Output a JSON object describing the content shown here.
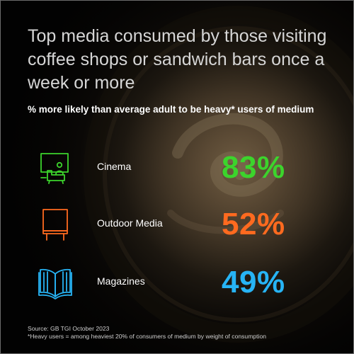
{
  "title": "Top media consumed by those visiting coffee shops or sandwich bars once a week or more",
  "subtitle": "% more likely than average adult to be heavy* users of medium",
  "rows": [
    {
      "label": "Cinema",
      "value": "83%",
      "icon": "cinema-icon",
      "color": "#3cd42c"
    },
    {
      "label": "Outdoor Media",
      "value": "52%",
      "icon": "billboard-icon",
      "color": "#ff6a1f"
    },
    {
      "label": "Magazines",
      "value": "49%",
      "icon": "magazine-icon",
      "color": "#27b4f5"
    }
  ],
  "footer": {
    "source": "Source: GB TGI October 2023",
    "note": "*Heavy users = among heaviest 20% of consumers of medium by weight of consumption"
  }
}
